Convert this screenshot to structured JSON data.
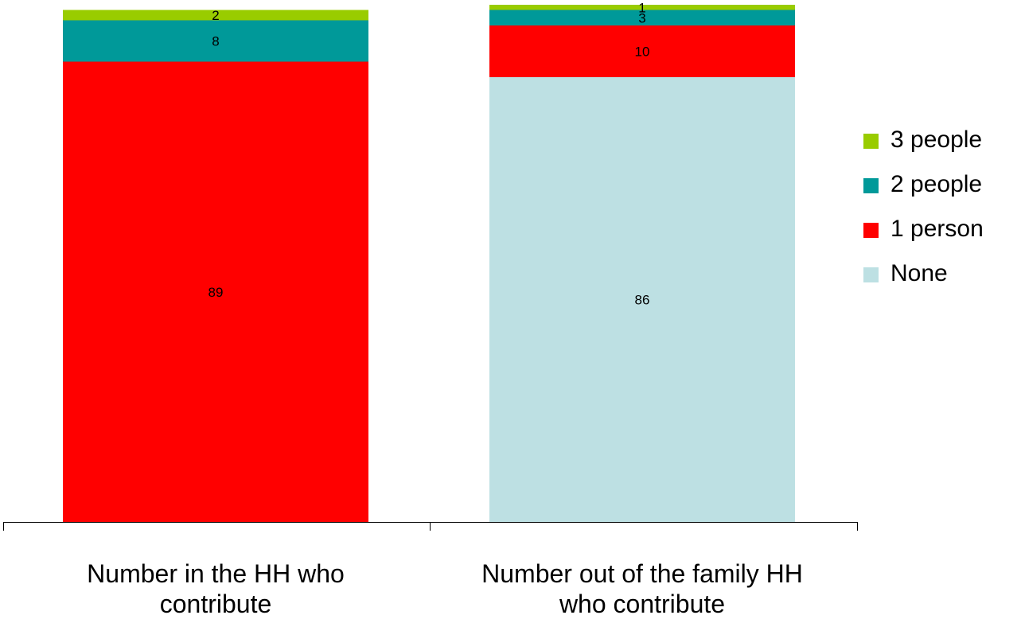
{
  "chart_data": {
    "type": "bar",
    "stacked": true,
    "categories": [
      "Number in the HH who contribute",
      "Number out of the family HH who contribute"
    ],
    "series": [
      {
        "name": "None",
        "color": "#bde0e3",
        "values": [
          0,
          86
        ],
        "labels": [
          "",
          "86"
        ]
      },
      {
        "name": "1 person",
        "color": "#ff0000",
        "values": [
          89,
          10
        ],
        "labels": [
          "89",
          "10"
        ]
      },
      {
        "name": "2 people",
        "color": "#009999",
        "values": [
          8,
          3
        ],
        "labels": [
          "8",
          "3"
        ]
      },
      {
        "name": "3 people",
        "color": "#99cc00",
        "values": [
          2,
          1
        ],
        "labels": [
          "2",
          "1"
        ]
      }
    ],
    "legend_order": [
      "3 people",
      "2 people",
      "1 person",
      "None"
    ],
    "legend_position": "right",
    "y_axis_visible": false,
    "grid": false
  }
}
